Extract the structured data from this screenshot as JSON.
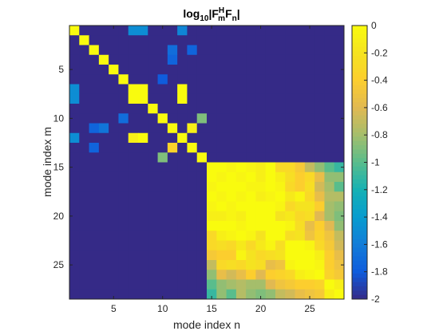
{
  "chart_data": {
    "type": "heatmap",
    "title": {
      "base": "log",
      "sub1": "10",
      "bar1": "|F",
      "sup": "H",
      "sub2": "m",
      "mid": "F",
      "sub3": "n",
      "bar2": "|"
    },
    "xlabel": "mode index n",
    "ylabel": "mode index m",
    "x_range": [
      1,
      28
    ],
    "y_range": [
      1,
      28
    ],
    "x_ticks": [
      5,
      10,
      15,
      20,
      25
    ],
    "y_ticks": [
      5,
      10,
      15,
      20,
      25
    ],
    "color_range": [
      -2,
      0
    ],
    "colorbar_ticks": [
      "0",
      "-0.2",
      "-0.4",
      "-0.6",
      "-0.8",
      "-1",
      "-1.2",
      "-1.4",
      "-1.6",
      "-1.8",
      "-2"
    ],
    "colormap": "parula",
    "background_value": -2,
    "values": {
      "1,1": 0,
      "1,7": -1.5,
      "1,8": -1.5,
      "1,12": -1.55,
      "2,2": 0,
      "3,3": 0,
      "3,11": -1.7,
      "3,13": -1.75,
      "4,4": 0,
      "4,11": -1.75,
      "5,5": 0,
      "6,6": 0,
      "6,10": -1.8,
      "7,7": 0,
      "7,1": -1.5,
      "7,8": 0,
      "7,12": 0,
      "8,8": 0,
      "8,1": -1.5,
      "8,7": 0,
      "8,12": 0,
      "9,9": 0,
      "10,6": -1.7,
      "10,10": 0,
      "10,14": -0.9,
      "11,3": -1.75,
      "11,4": -1.65,
      "11,11": 0,
      "11,13": -0.1,
      "12,1": -1.5,
      "12,7": -0.1,
      "12,8": 0,
      "12,12": 0,
      "13,3": -1.75,
      "13,11": -0.35,
      "13,13": 0,
      "14,10": -0.9,
      "14,14": 0
    },
    "block_rows": [
      [
        0,
        0,
        -0.05,
        0,
        -0.05,
        -0.1,
        0,
        -0.3,
        -0.3,
        -0.45,
        -0.7,
        -0.85,
        -1.0,
        -1.1
      ],
      [
        0,
        -0.05,
        0,
        -0.05,
        0,
        -0.1,
        0,
        -0.1,
        -0.25,
        -0.4,
        -0.3,
        -0.55,
        -0.85,
        -0.85
      ],
      [
        -0.05,
        0,
        0,
        0,
        -0.05,
        -0.05,
        0,
        -0.05,
        -0.3,
        -0.4,
        -0.25,
        -0.65,
        -0.8,
        -1.0
      ],
      [
        0,
        -0.05,
        0,
        -0.05,
        0,
        -0.1,
        -0.05,
        0,
        -0.15,
        -0.05,
        -0.3,
        -0.55,
        -0.75,
        -0.75
      ],
      [
        -0.05,
        0,
        -0.05,
        0,
        0,
        0,
        0,
        -0.05,
        -0.3,
        -0.2,
        -0.2,
        -0.4,
        -0.8,
        -0.85
      ],
      [
        -0.1,
        -0.1,
        -0.05,
        -0.1,
        0,
        0,
        0,
        -0.2,
        -0.15,
        -0.3,
        -0.25,
        -0.6,
        -0.8,
        -0.9
      ],
      [
        0,
        0,
        0,
        -0.05,
        0,
        0,
        0,
        0,
        -0.05,
        -0.25,
        -0.55,
        -0.4,
        -0.6,
        -0.85
      ],
      [
        -0.3,
        -0.1,
        -0.05,
        0,
        -0.05,
        -0.2,
        0,
        0,
        -0.25,
        -0.2,
        -0.5,
        -0.35,
        -0.5,
        -0.7
      ],
      [
        -0.3,
        -0.25,
        -0.3,
        -0.15,
        -0.3,
        -0.15,
        -0.05,
        -0.25,
        0,
        0,
        -0.05,
        -0.3,
        -0.45,
        -0.65
      ],
      [
        -0.45,
        -0.4,
        -0.4,
        -0.05,
        -0.2,
        -0.3,
        -0.25,
        -0.2,
        0,
        0,
        0,
        -0.1,
        -0.4,
        -0.55
      ],
      [
        -0.7,
        -0.3,
        -0.25,
        -0.3,
        -0.2,
        -0.25,
        -0.55,
        -0.5,
        -0.05,
        0,
        0,
        -0.05,
        -0.4,
        -0.5
      ],
      [
        -0.85,
        -0.55,
        -0.65,
        -0.55,
        -0.4,
        -0.6,
        -0.4,
        -0.35,
        -0.3,
        -0.1,
        -0.05,
        0,
        -0.35,
        -0.45
      ],
      [
        -1.0,
        -0.85,
        -0.8,
        -0.75,
        -0.8,
        -0.8,
        -0.6,
        -0.5,
        -0.45,
        -0.4,
        -0.4,
        -0.35,
        0,
        -0.1
      ],
      [
        -1.1,
        -0.85,
        -1.0,
        -0.75,
        -0.85,
        -0.9,
        -0.85,
        -0.7,
        -0.65,
        -0.55,
        -0.5,
        -0.45,
        -0.1,
        0
      ]
    ],
    "block_start": 15
  }
}
